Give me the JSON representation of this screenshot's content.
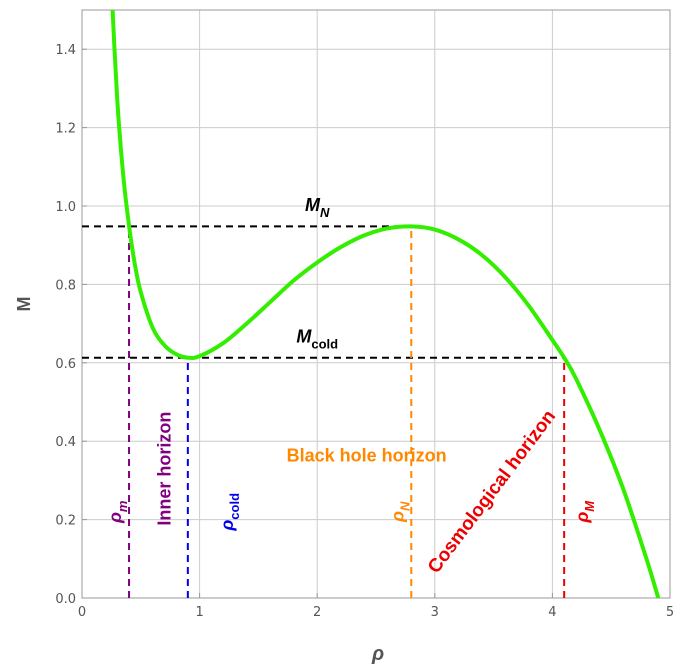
{
  "chart_data": {
    "type": "line",
    "title": "",
    "xlabel": "ρ",
    "ylabel": "M",
    "xlim": [
      0,
      5
    ],
    "ylim": [
      0,
      1.5
    ],
    "grid": true,
    "x_ticks": [
      0,
      1,
      2,
      3,
      4,
      5
    ],
    "x_tick_labels": [
      "0",
      "1",
      "2",
      "3",
      "4",
      "5"
    ],
    "y_ticks": [
      0,
      0.2,
      0.4,
      0.6,
      0.8,
      1.0,
      1.2,
      1.4
    ],
    "y_tick_labels": [
      "0.0",
      "0.2",
      "0.4",
      "0.6",
      "0.8",
      "1.0",
      "1.2",
      "1.4"
    ],
    "curve_color": "#33ee00",
    "series": [
      {
        "x": [
          0.25,
          0.3,
          0.35,
          0.4,
          0.45,
          0.5,
          0.6,
          0.7,
          0.8,
          0.9,
          1.0,
          1.2,
          1.4,
          1.6,
          1.8,
          2.0,
          2.2,
          2.4,
          2.6,
          2.8,
          3.0,
          3.2,
          3.4,
          3.6,
          3.8,
          4.0,
          4.1,
          4.2,
          4.4,
          4.6,
          4.8,
          4.9
        ],
        "values": [
          1.56,
          1.27,
          1.08,
          0.95,
          0.85,
          0.78,
          0.69,
          0.645,
          0.622,
          0.613,
          0.617,
          0.65,
          0.7,
          0.755,
          0.81,
          0.856,
          0.895,
          0.925,
          0.943,
          0.948,
          0.94,
          0.915,
          0.875,
          0.818,
          0.745,
          0.658,
          0.613,
          0.56,
          0.43,
          0.28,
          0.1,
          0.0
        ]
      }
    ],
    "reference_lines": [
      {
        "kind": "horizontal",
        "y": 0.948,
        "x_from": 0,
        "x_to": 2.8,
        "color": "#000000"
      },
      {
        "kind": "horizontal",
        "y": 0.613,
        "x_from": 0,
        "x_to": 4.1,
        "color": "#000000"
      },
      {
        "kind": "vertical",
        "x": 0.4,
        "y_from": 0,
        "y_to": 0.948,
        "color": "#800080"
      },
      {
        "kind": "vertical",
        "x": 0.9,
        "y_from": 0,
        "y_to": 0.613,
        "color": "#0000ee"
      },
      {
        "kind": "vertical",
        "x": 2.8,
        "y_from": 0,
        "y_to": 0.948,
        "color": "#ff8800"
      },
      {
        "kind": "vertical",
        "x": 4.1,
        "y_from": 0,
        "y_to": 0.613,
        "color": "#ee0000"
      }
    ],
    "annotations": [
      {
        "id": "m-n",
        "base": "M",
        "sub": "N",
        "sub_italic": true,
        "x": 2.0,
        "y": 1.0,
        "color": "#000000",
        "size": 18,
        "rotate": 0
      },
      {
        "id": "m-cold",
        "base": "M",
        "sub": "cold",
        "sub_italic": false,
        "x": 2.0,
        "y": 0.665,
        "color": "#000000",
        "size": 18,
        "rotate": 0
      },
      {
        "id": "rho-m",
        "base": "ρ",
        "sub": "m",
        "sub_italic": true,
        "x": 0.29,
        "y": 0.22,
        "color": "#800080",
        "size": 18,
        "rotate": -90
      },
      {
        "id": "inner-horizon",
        "text": "Inner horizon",
        "x": 0.71,
        "y": 0.33,
        "color": "#800080",
        "size": 18,
        "rotate": -90
      },
      {
        "id": "rho-cold",
        "base": "ρ",
        "sub": "cold",
        "sub_italic": false,
        "x": 1.24,
        "y": 0.22,
        "color": "#0000ee",
        "size": 18,
        "rotate": -90
      },
      {
        "id": "black-hole-horizon",
        "text": "Black hole horizon",
        "x": 2.42,
        "y": 0.36,
        "color": "#ff8800",
        "size": 18,
        "rotate": 0
      },
      {
        "id": "rho-n",
        "base": "ρ",
        "sub": "N",
        "sub_italic": true,
        "x": 2.69,
        "y": 0.22,
        "color": "#ff8800",
        "size": 18,
        "rotate": -90
      },
      {
        "id": "cosmological-horizon",
        "text": "Cosmological horizon",
        "x": 3.49,
        "y": 0.27,
        "color": "#ee0000",
        "size": 19,
        "rotate": -53
      },
      {
        "id": "rho-M",
        "base": "ρ",
        "sub": "M",
        "sub_italic": true,
        "x": 4.26,
        "y": 0.22,
        "color": "#ee0000",
        "size": 18,
        "rotate": -90
      }
    ]
  }
}
